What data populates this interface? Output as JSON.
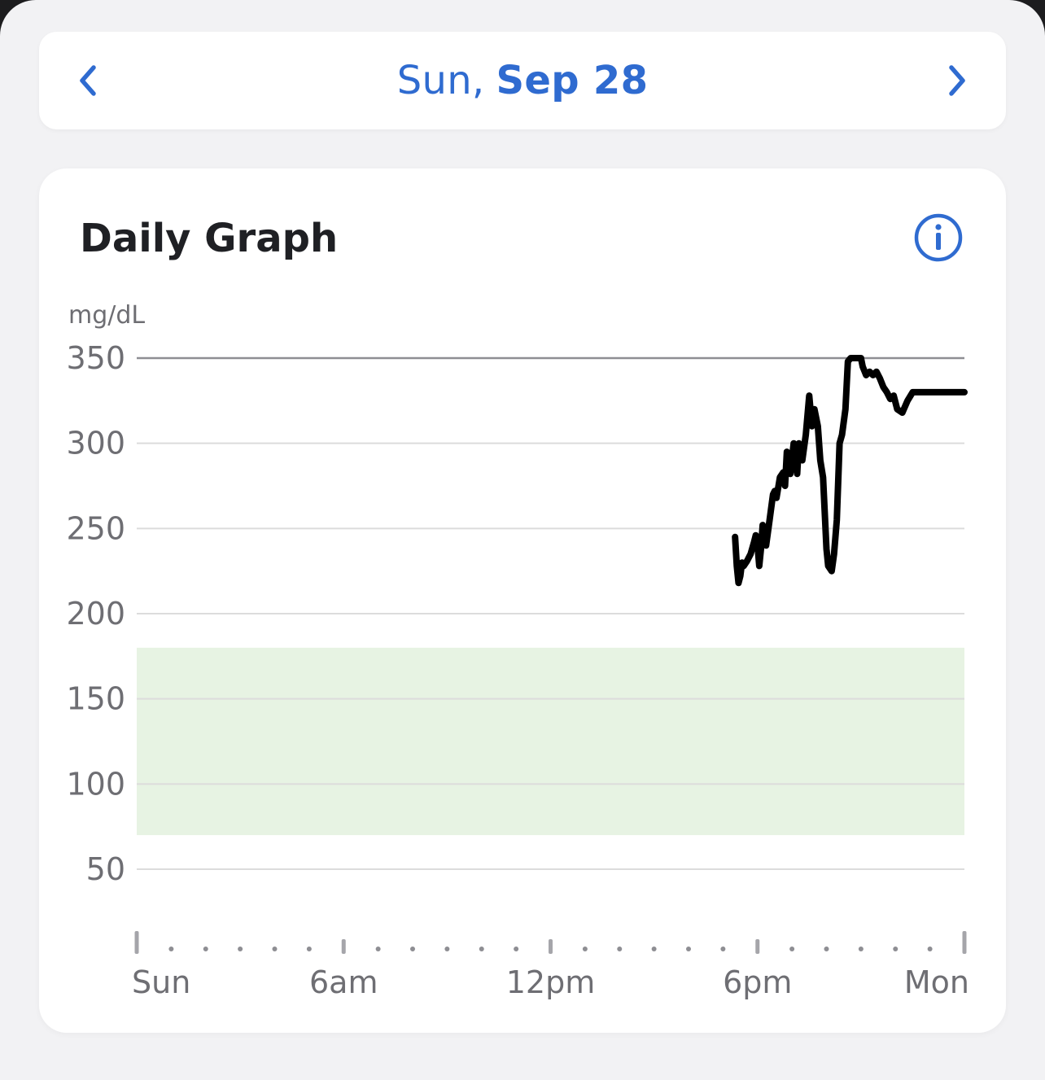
{
  "date_nav": {
    "day_of_week": "Sun,",
    "date": "Sep 28",
    "prev_icon": "chevron-left-icon",
    "next_icon": "chevron-right-icon"
  },
  "card": {
    "title": "Daily Graph",
    "info_icon": "info-icon"
  },
  "colors": {
    "accent": "#2f6bd0",
    "target_range": "#e7f3e3",
    "line": "#000000",
    "grid": "#dcdcdc",
    "upper_limit": "#8e8e93"
  },
  "chart_data": {
    "type": "line",
    "ylabel": "mg/dL",
    "ylim": [
      20,
      360
    ],
    "y_ticks": [
      50,
      100,
      150,
      200,
      250,
      300,
      350
    ],
    "target_range": [
      70,
      180
    ],
    "upper_limit": 350,
    "x_range_hours": [
      0,
      24
    ],
    "x_ticks": [
      {
        "hour": 0,
        "label": "Sun"
      },
      {
        "hour": 6,
        "label": "6am"
      },
      {
        "hour": 12,
        "label": "12pm"
      },
      {
        "hour": 18,
        "label": "6pm"
      },
      {
        "hour": 24,
        "label": "Mon"
      }
    ],
    "minor_tick_interval_hours": 1,
    "series": [
      {
        "x_hours": [
          17.35,
          17.4,
          17.45,
          17.5,
          17.55,
          17.6,
          17.7,
          17.8,
          17.9,
          17.95,
          18.0,
          18.05,
          18.1,
          18.15,
          18.25,
          18.35,
          18.45,
          18.5,
          18.55,
          18.65,
          18.75,
          18.8,
          18.85,
          18.95,
          19.05,
          19.15,
          19.2,
          19.3,
          19.4,
          19.5,
          19.58,
          19.65,
          19.75,
          19.82,
          19.9,
          20.0,
          20.05,
          20.15,
          20.22,
          20.3,
          20.38,
          20.45,
          20.55,
          20.62,
          20.7,
          20.8,
          20.9,
          21.0,
          21.05,
          21.15,
          21.25,
          21.35,
          21.45,
          21.55,
          21.65,
          21.75,
          21.85,
          21.95,
          22.05,
          22.2,
          22.35,
          22.5,
          22.65,
          22.8,
          22.9,
          23.0,
          23.1,
          23.2,
          23.3,
          23.4,
          23.5,
          23.6,
          23.7,
          23.8,
          23.9,
          24.0
        ],
        "y": [
          245,
          228,
          218,
          222,
          230,
          228,
          231,
          235,
          242,
          246,
          240,
          228,
          238,
          252,
          240,
          255,
          270,
          272,
          268,
          280,
          283,
          275,
          295,
          282,
          300,
          282,
          300,
          290,
          305,
          328,
          310,
          320,
          310,
          290,
          280,
          238,
          228,
          225,
          235,
          255,
          300,
          305,
          320,
          348,
          350,
          350,
          350,
          350,
          345,
          340,
          342,
          340,
          342,
          338,
          333,
          330,
          326,
          328,
          320,
          318,
          325,
          330,
          330,
          330,
          330,
          330,
          330,
          330,
          330,
          330,
          330,
          330,
          330,
          330,
          330,
          330
        ]
      }
    ]
  }
}
